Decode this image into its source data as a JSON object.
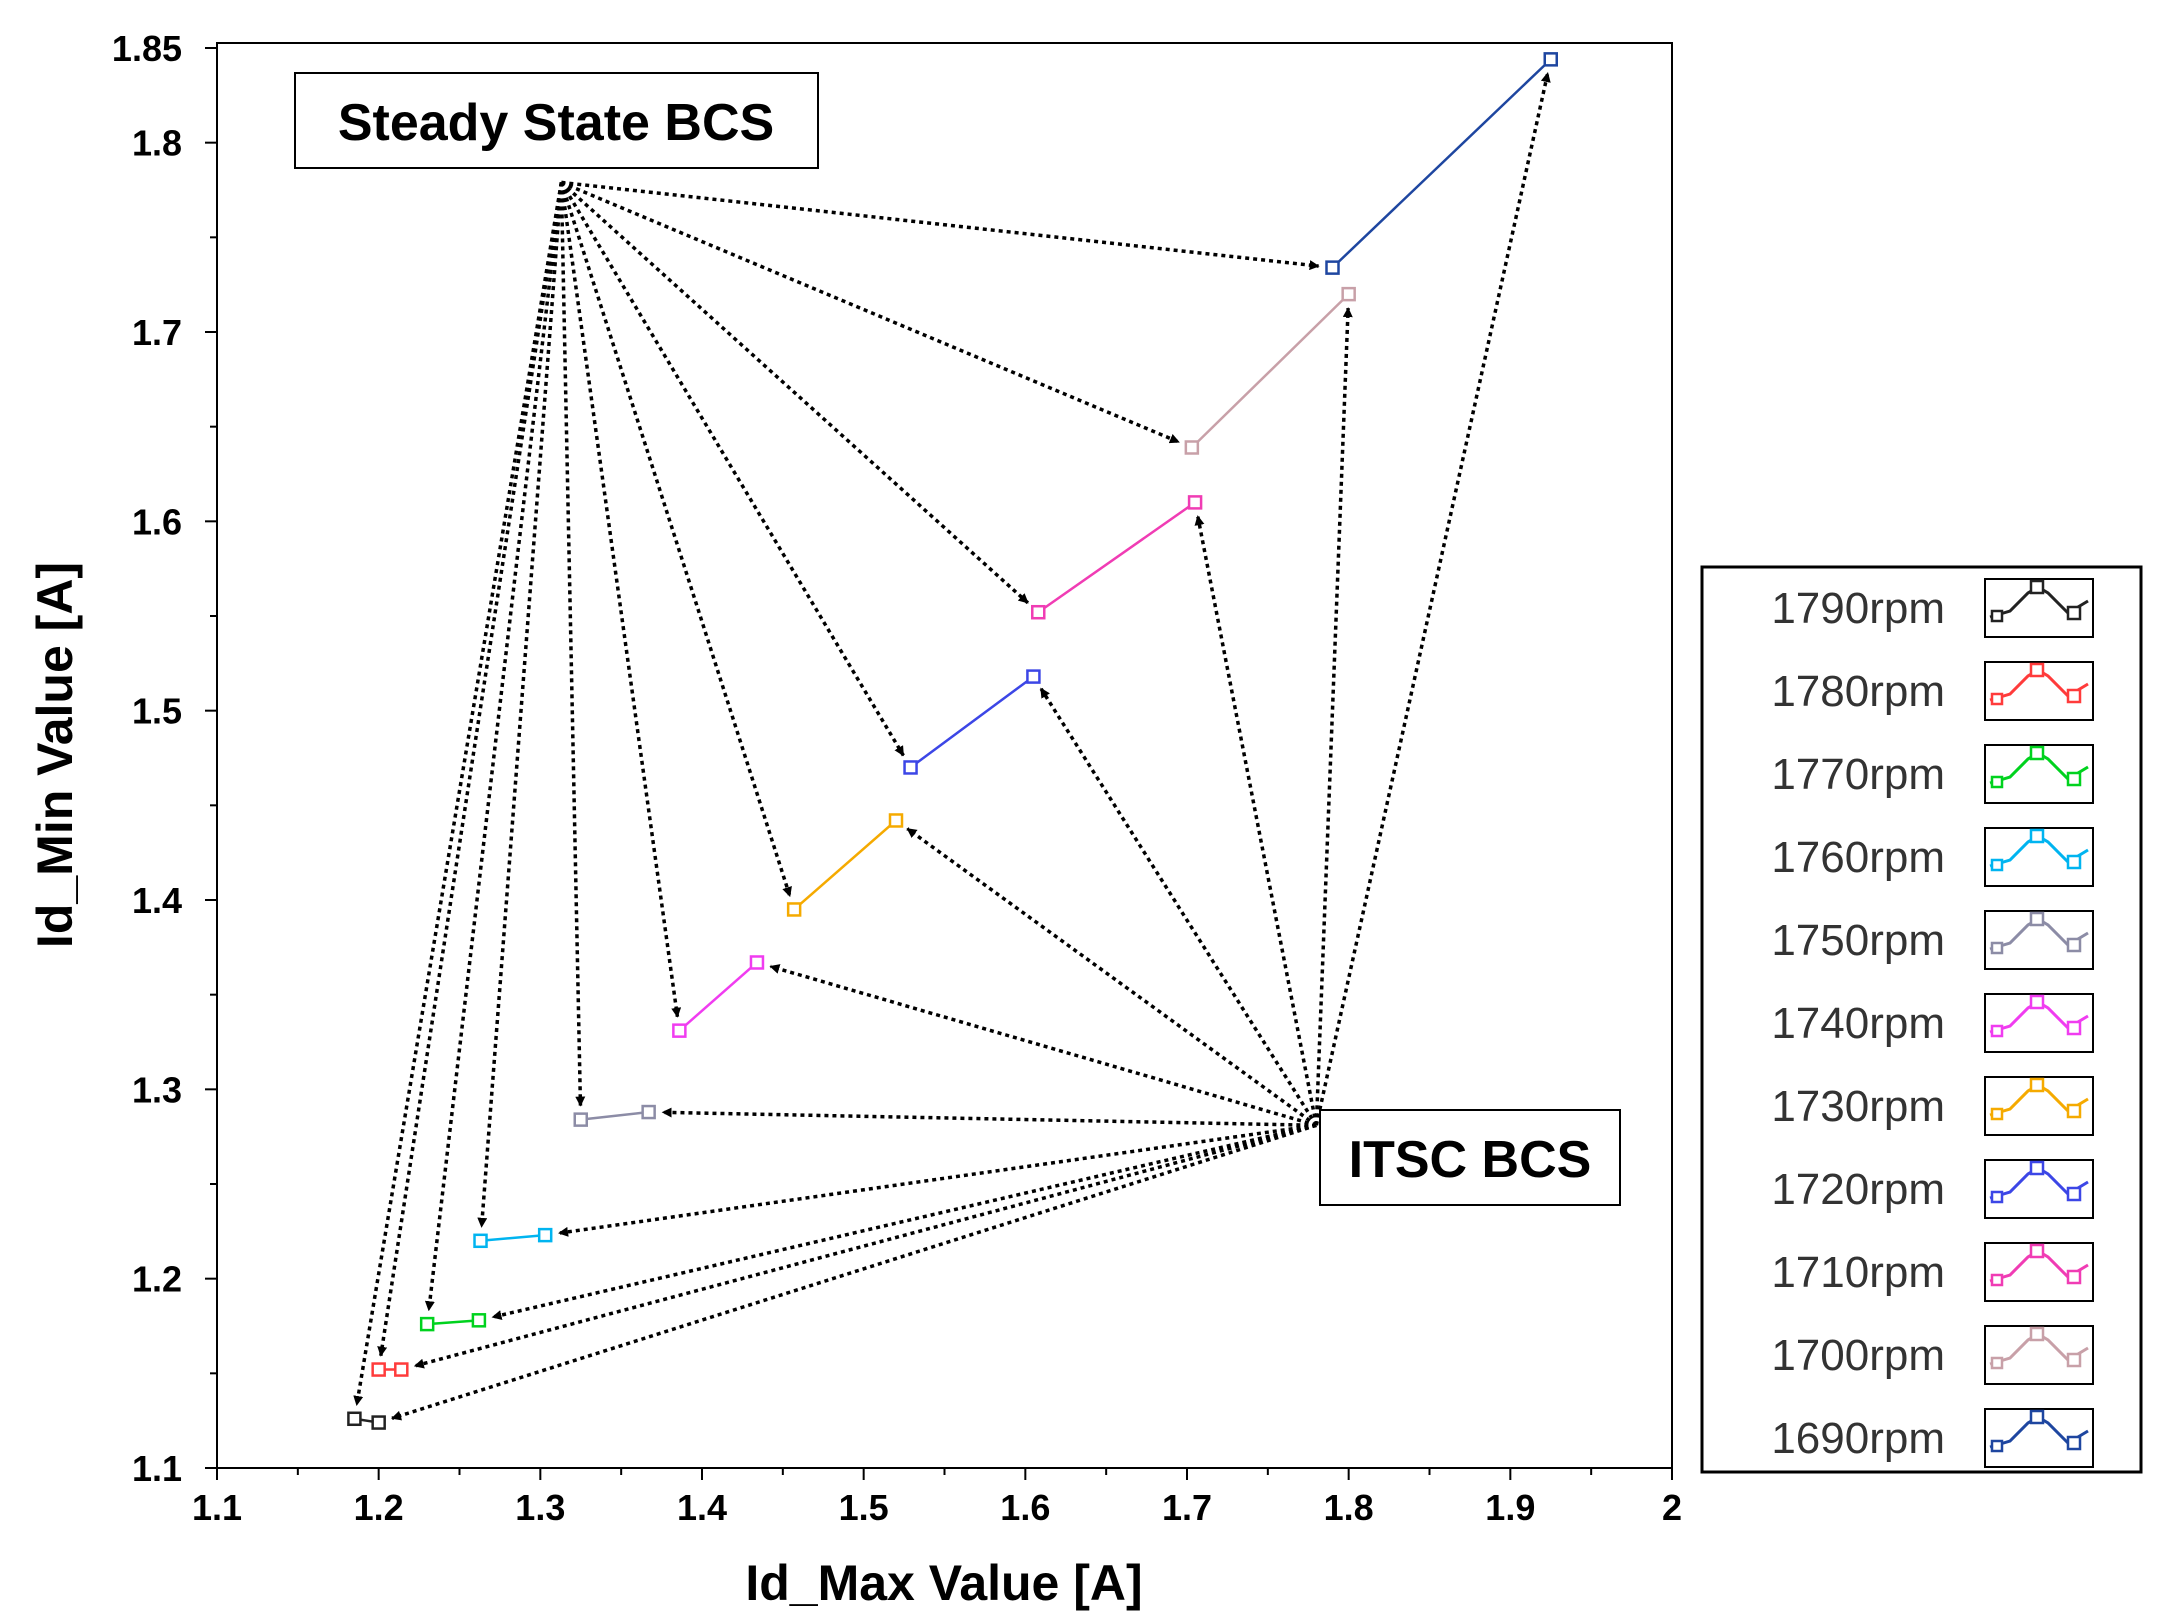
{
  "chart_data": {
    "type": "line",
    "title": "",
    "xlabel": "Id_Max Value [A]",
    "ylabel": "Id_Min Value [A]",
    "xlim": [
      1.1,
      2.0
    ],
    "ylim": [
      1.1,
      1.85
    ],
    "x_ticks": [
      "1.1",
      "1.2",
      "1.3",
      "1.4",
      "1.5",
      "1.6",
      "1.7",
      "1.8",
      "1.9",
      "2"
    ],
    "y_ticks": [
      "1.1",
      "1.2",
      "1.3",
      "1.4",
      "1.5",
      "1.6",
      "1.7",
      "1.8",
      "1.85"
    ],
    "grid": false,
    "legend_position": "right",
    "series": [
      {
        "name": "1790rpm",
        "color": "#222222",
        "steady": [
          1.185,
          1.126
        ],
        "itsc": [
          1.2,
          1.124
        ]
      },
      {
        "name": "1780rpm",
        "color": "#ff3b3b",
        "steady": [
          1.2,
          1.152
        ],
        "itsc": [
          1.214,
          1.152
        ]
      },
      {
        "name": "1770rpm",
        "color": "#00d21e",
        "steady": [
          1.23,
          1.176
        ],
        "itsc": [
          1.262,
          1.178
        ]
      },
      {
        "name": "1760rpm",
        "color": "#00b4f0",
        "steady": [
          1.263,
          1.22
        ],
        "itsc": [
          1.303,
          1.223
        ]
      },
      {
        "name": "1750rpm",
        "color": "#8c8ca6",
        "steady": [
          1.325,
          1.284
        ],
        "itsc": [
          1.367,
          1.288
        ]
      },
      {
        "name": "1740rpm",
        "color": "#f03cf0",
        "steady": [
          1.386,
          1.331
        ],
        "itsc": [
          1.434,
          1.367
        ]
      },
      {
        "name": "1730rpm",
        "color": "#f5aa00",
        "steady": [
          1.457,
          1.395
        ],
        "itsc": [
          1.52,
          1.442
        ]
      },
      {
        "name": "1720rpm",
        "color": "#3c46e6",
        "steady": [
          1.529,
          1.47
        ],
        "itsc": [
          1.605,
          1.518
        ]
      },
      {
        "name": "1710rpm",
        "color": "#f03cb4",
        "steady": [
          1.608,
          1.552
        ],
        "itsc": [
          1.705,
          1.61
        ]
      },
      {
        "name": "1700rpm",
        "color": "#c8a0a8",
        "steady": [
          1.703,
          1.639
        ],
        "itsc": [
          1.8,
          1.72
        ]
      },
      {
        "name": "1690rpm",
        "color": "#1e46a0",
        "steady": [
          1.79,
          1.734
        ],
        "itsc": [
          1.925,
          1.844
        ]
      }
    ],
    "annotations": {
      "steady": {
        "label": "Steady State BCS",
        "origin": [
          1.313,
          1.779
        ]
      },
      "itsc": {
        "label": "ITSC BCS",
        "origin": [
          1.78,
          1.281
        ]
      }
    }
  }
}
